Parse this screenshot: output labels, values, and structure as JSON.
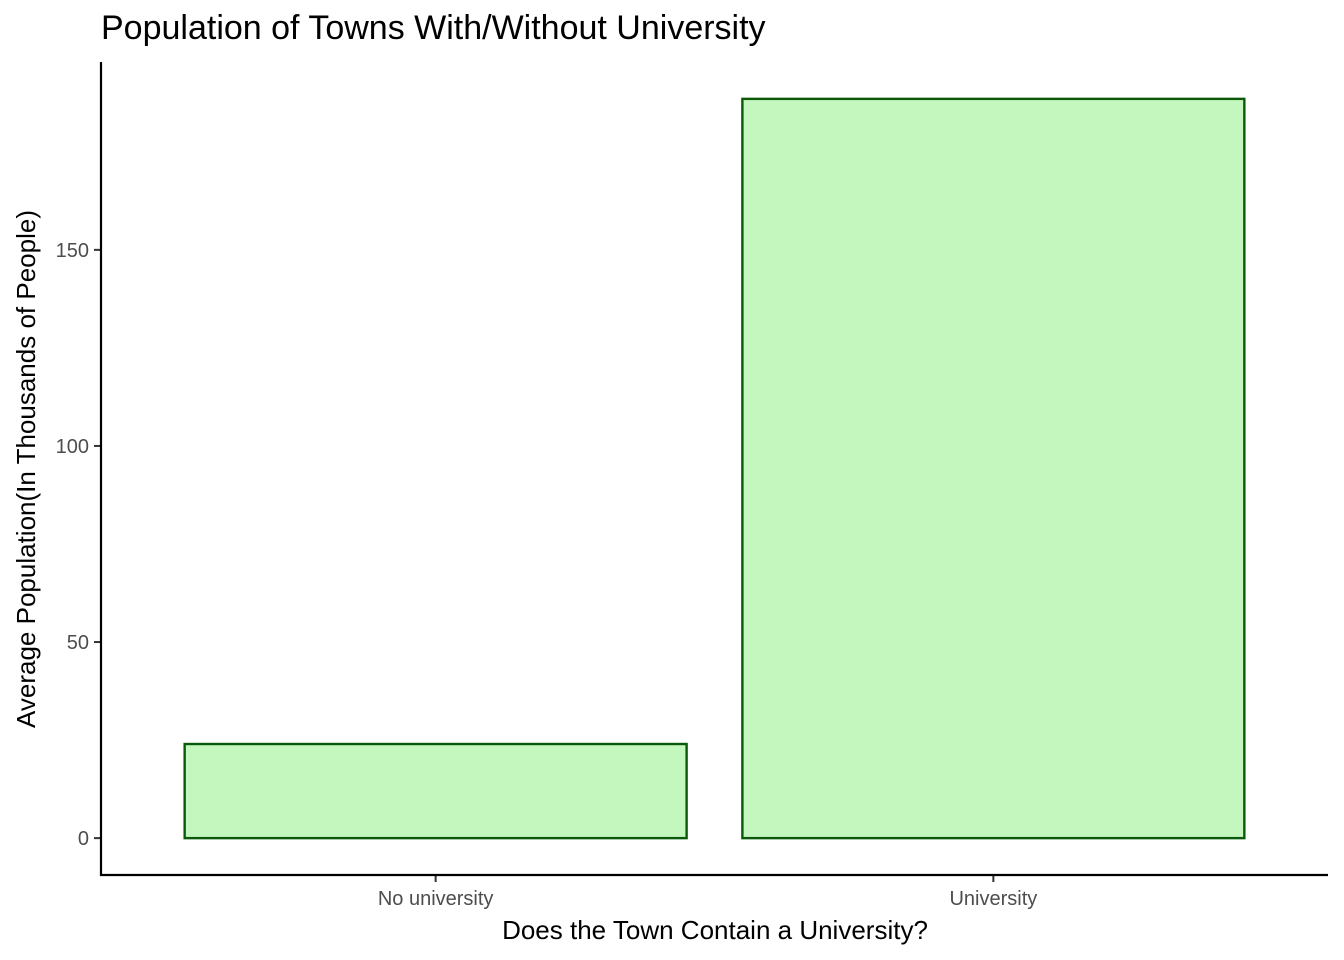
{
  "chart_data": {
    "type": "bar",
    "title": "Population of Towns With/Without University",
    "xlabel": "Does the Town Contain a University?",
    "ylabel": "Average Population(In Thousands of People)",
    "categories": [
      "No university",
      "University"
    ],
    "values": [
      24,
      188.5
    ],
    "ylim": [
      -9.4,
      197.9
    ],
    "yticks": [
      0,
      50,
      100,
      150
    ],
    "grid": false,
    "legend": "none",
    "colors": {
      "bar_fill": "#c3f7be",
      "bar_stroke": "#0a5a0a",
      "axis": "#000000",
      "tick_label": "#4d4d4d"
    }
  }
}
